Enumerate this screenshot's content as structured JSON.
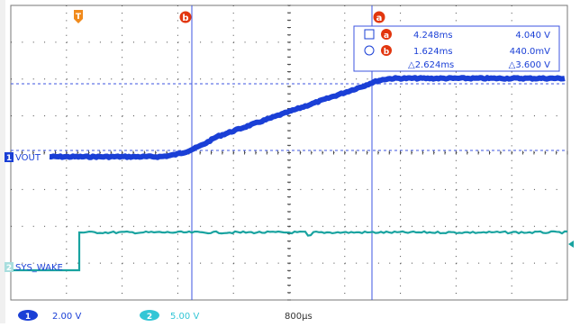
{
  "channels": {
    "ch1": {
      "number": "1",
      "label": "VOUT",
      "scale": "2.00 V",
      "color": "#1a3fd6"
    },
    "ch2": {
      "number": "2",
      "label": "SYS_WAKE",
      "scale": "5.00 V",
      "color": "#19a3a0"
    }
  },
  "timebase": {
    "value": "800µs"
  },
  "markers": {
    "trigger": {
      "label": "T",
      "color": "#f08a1c"
    },
    "cursor_a": {
      "label": "a",
      "color": "#e2360e"
    },
    "cursor_b": {
      "label": "b",
      "color": "#e2360e"
    }
  },
  "readout": {
    "row_a": {
      "time": "4.248ms",
      "volt": "4.040 V"
    },
    "row_b": {
      "time": "1.624ms",
      "volt": "440.0mV"
    },
    "row_delta": {
      "time": "△2.624ms",
      "volt": "△3.600 V"
    }
  },
  "waveform": {
    "vout_rise_start": 0.2,
    "vout_rise_end": 1.625,
    "ch2_edge": 0.18
  }
}
